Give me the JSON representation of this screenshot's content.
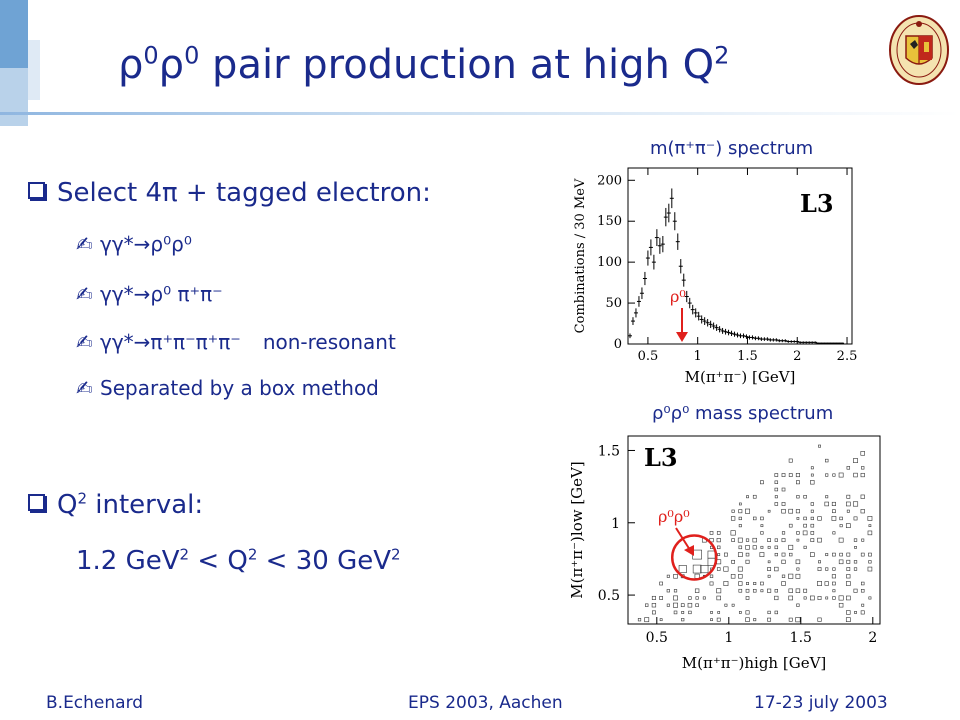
{
  "slide": {
    "title": {
      "main": "ρ⁰ρ⁰ pair production at high Q",
      "exp": "2",
      "rho": "ρ",
      "zero": "0",
      "text": " pair production at high Q"
    }
  },
  "bullets": [
    {
      "label": "Select 4π + tagged electron:"
    },
    {
      "label": "Q² interval:",
      "text": "Q",
      "exp": "2",
      "rest": " interval:"
    }
  ],
  "subitems": [
    {
      "text": "γγ*→ρ⁰ρ⁰"
    },
    {
      "text": "γγ*→ρ⁰ π⁺π⁻"
    },
    {
      "text": "γγ*→π⁺π⁻π⁺π⁻",
      "suffix": "non-resonant"
    },
    {
      "text": "Separated by a box method"
    }
  ],
  "interval": {
    "text": "1.2 GeV² < Q² < 30 GeV²",
    "p1": "1.2 GeV",
    "p2": " < Q",
    "p3": " < 30 GeV",
    "exp": "2"
  },
  "chart_captions": {
    "top": "m(π⁺π⁻) spectrum",
    "bottom": "ρ⁰ρ⁰ mass spectrum"
  },
  "footer": {
    "left": "B.Echenard",
    "center": "EPS 2003, Aachen",
    "right": "17-23 july 2003"
  },
  "chart_data": [
    {
      "type": "scatter",
      "title": "",
      "experiment_label": "L3",
      "annotation": "ρ⁰",
      "xlabel": "M(π⁺π⁻) [GeV]",
      "ylabel": "Combinations / 30 MeV",
      "xlim": [
        0.3,
        2.55
      ],
      "ylim": [
        0,
        215
      ],
      "xticks": [
        "0.5",
        "1",
        "1.5",
        "2",
        "2.5"
      ],
      "yticks": [
        "0",
        "50",
        "100",
        "150",
        "200"
      ],
      "x": [
        0.32,
        0.35,
        0.38,
        0.41,
        0.44,
        0.47,
        0.5,
        0.53,
        0.56,
        0.59,
        0.62,
        0.65,
        0.68,
        0.71,
        0.74,
        0.77,
        0.8,
        0.83,
        0.86,
        0.89,
        0.92,
        0.95,
        0.98,
        1.01,
        1.04,
        1.07,
        1.1,
        1.13,
        1.16,
        1.19,
        1.22,
        1.25,
        1.28,
        1.31,
        1.34,
        1.37,
        1.4,
        1.43,
        1.46,
        1.49,
        1.52,
        1.55,
        1.58,
        1.61,
        1.64,
        1.67,
        1.7,
        1.73,
        1.76,
        1.79,
        1.82,
        1.85,
        1.88,
        1.91,
        1.94,
        1.97,
        2.0,
        2.03,
        2.06,
        2.09,
        2.12,
        2.15,
        2.18,
        2.21,
        2.24,
        2.27,
        2.3,
        2.33,
        2.36,
        2.39,
        2.42,
        2.45
      ],
      "y": [
        10,
        28,
        38,
        52,
        62,
        80,
        105,
        118,
        100,
        130,
        120,
        122,
        155,
        160,
        178,
        150,
        125,
        95,
        78,
        58,
        50,
        42,
        38,
        34,
        30,
        28,
        26,
        24,
        22,
        20,
        18,
        16,
        15,
        14,
        13,
        12,
        11,
        10,
        10,
        9,
        8,
        8,
        7,
        7,
        6,
        6,
        6,
        5,
        5,
        5,
        4,
        4,
        4,
        3,
        3,
        3,
        3,
        2,
        2,
        2,
        2,
        2,
        2,
        1,
        1,
        1,
        1,
        1,
        1,
        1,
        1,
        1
      ]
    },
    {
      "type": "scatter",
      "title": "",
      "experiment_label": "L3",
      "annotation": "ρ⁰ρ⁰",
      "xlabel": "M(π⁺π⁻)high [GeV]",
      "ylabel": "M(π⁺π⁻)low [GeV]",
      "xlim": [
        0.3,
        2.05
      ],
      "ylim": [
        0.3,
        1.6
      ],
      "xticks": [
        "0.5",
        "1",
        "1.5",
        "2"
      ],
      "yticks": [
        "0.5",
        "1",
        "1.5"
      ]
    }
  ]
}
